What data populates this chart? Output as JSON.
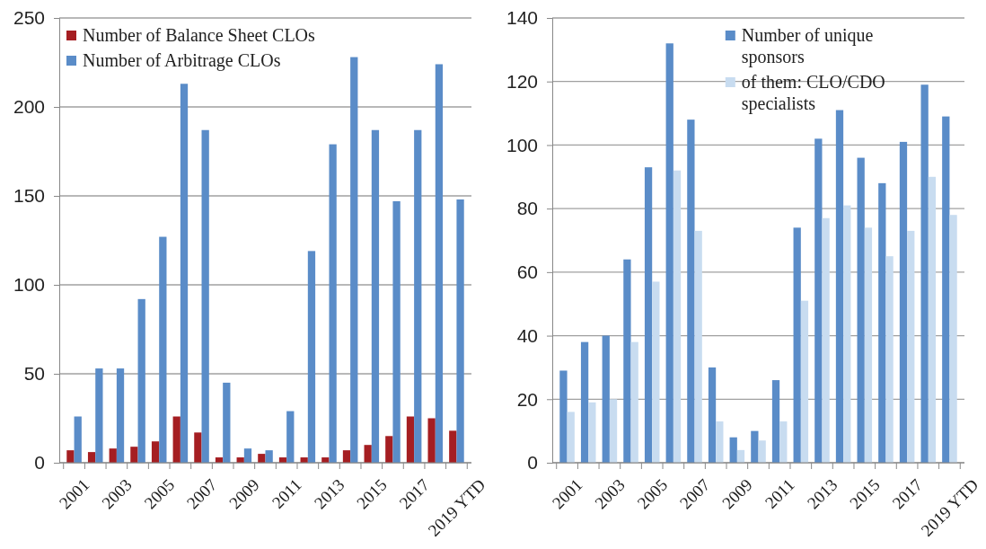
{
  "chart_data": [
    {
      "type": "bar",
      "categories": [
        "2001",
        null,
        "2003",
        null,
        "2005",
        null,
        "2007",
        null,
        "2009",
        null,
        "2011",
        null,
        "2013",
        null,
        "2015",
        null,
        "2017",
        null,
        "2019 YTD"
      ],
      "series": [
        {
          "name": "Number of Balance Sheet CLOs",
          "color": "#a51e22",
          "values": [
            7,
            6,
            8,
            9,
            12,
            26,
            17,
            3,
            3,
            5,
            3,
            3,
            3,
            7,
            10,
            15,
            26,
            25,
            18
          ]
        },
        {
          "name": "Number of Arbitrage CLOs",
          "color": "#5a8cc8",
          "values": [
            26,
            53,
            53,
            92,
            127,
            213,
            187,
            45,
            8,
            7,
            29,
            119,
            179,
            228,
            187,
            147,
            187,
            224,
            148
          ]
        }
      ],
      "ylim": [
        0,
        250
      ],
      "yticks": [
        0,
        50,
        100,
        150,
        200,
        250
      ],
      "grid": "y",
      "legend": "top left"
    },
    {
      "type": "bar",
      "categories": [
        "2001",
        null,
        "2003",
        null,
        "2005",
        null,
        "2007",
        null,
        "2009",
        null,
        "2011",
        null,
        "2013",
        null,
        "2015",
        null,
        "2017",
        null,
        "2019 YTD"
      ],
      "series": [
        {
          "name": "Number of unique sponsors",
          "color": "#5a8cc8",
          "values": [
            29,
            38,
            40,
            64,
            93,
            132,
            108,
            30,
            8,
            10,
            26,
            74,
            102,
            111,
            96,
            88,
            101,
            119,
            109
          ]
        },
        {
          "name": "of them: CLO/CDO specialists",
          "color": "#c8dcf0",
          "values": [
            16,
            19,
            20,
            38,
            57,
            92,
            73,
            13,
            4,
            7,
            13,
            51,
            77,
            81,
            74,
            65,
            73,
            90,
            78
          ]
        }
      ],
      "ylim": [
        0,
        140
      ],
      "yticks": [
        0,
        20,
        40,
        60,
        80,
        100,
        120,
        140
      ],
      "grid": "y",
      "legend": "top"
    }
  ]
}
